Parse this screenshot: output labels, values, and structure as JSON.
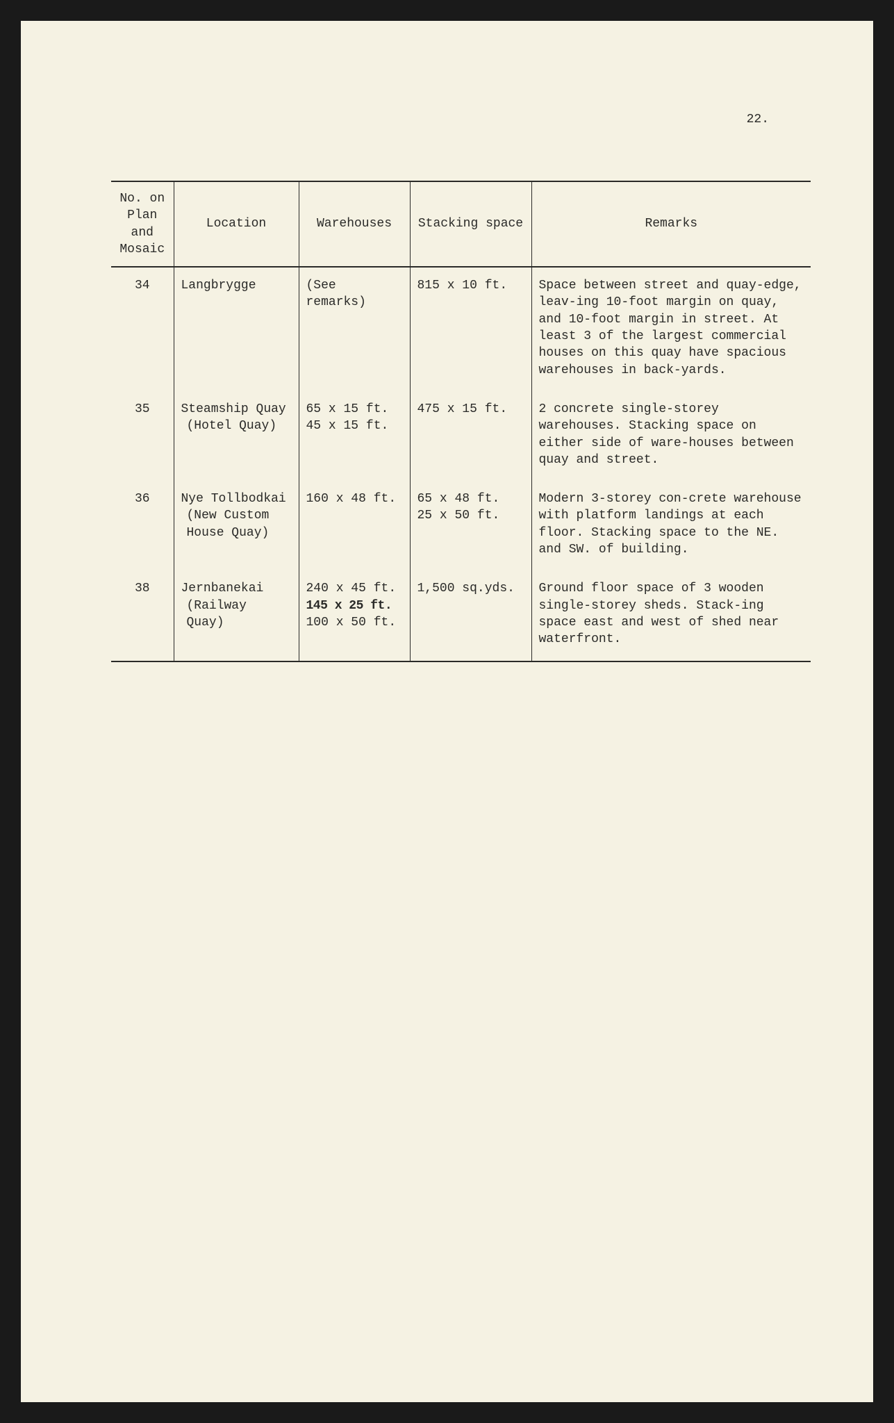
{
  "pageNumber": "22.",
  "table": {
    "columns": {
      "no_line1": "No. on",
      "no_line2": "Plan and",
      "no_line3": "Mosaic",
      "location": "Location",
      "warehouses": "Warehouses",
      "stacking": "Stacking space",
      "remarks": "Remarks"
    },
    "rows": [
      {
        "no": "34",
        "location_main": "Langbrygge",
        "location_sub": "",
        "warehouses_l1": "(See",
        "warehouses_l2": "  remarks)",
        "warehouses_l3": "",
        "stacking": "815 x 10 ft.",
        "remarks": "Space between street and quay-edge, leav-ing 10-foot margin on quay, and 10-foot margin in street.  At least 3 of the largest commercial houses on this quay have spacious warehouses in back-yards."
      },
      {
        "no": "35",
        "location_main": "Steamship Quay",
        "location_sub": "(Hotel Quay)",
        "warehouses_l1": "65 x 15 ft.",
        "warehouses_l2": "45 x 15 ft.",
        "warehouses_l3": "",
        "stacking": "475 x 15 ft.",
        "remarks": "2 concrete single-storey warehouses. Stacking space on either side of ware-houses between quay and street."
      },
      {
        "no": "36",
        "location_main": "Nye Tollbodkai",
        "location_sub": "(New Custom House Quay)",
        "warehouses_l1": "160 x 48 ft.",
        "warehouses_l2": "",
        "warehouses_l3": "",
        "stacking_l1": "65 x 48 ft.",
        "stacking_l2": "25 x 50 ft.",
        "remarks": "Modern 3-storey con-crete warehouse with platform landings at each floor. Stacking space to the NE. and SW. of building."
      },
      {
        "no": "38",
        "location_main": "Jernbanekai",
        "location_sub": "(Railway Quay)",
        "warehouses_l1": "240 x 45 ft.",
        "warehouses_l2_bold": "145 x 25 ft.",
        "warehouses_l3": "100 x 50 ft.",
        "stacking": "1,500 sq.yds.",
        "remarks": "Ground floor space of 3 wooden single-storey sheds. Stack-ing space east and west of shed near waterfront."
      }
    ]
  },
  "style": {
    "page_bg": "#f5f2e3",
    "frame_bg": "#1a1a1a",
    "text_color": "#2a2a28",
    "rule_color": "#2a2a28",
    "font_family": "Courier New",
    "font_size_pt": 14
  }
}
